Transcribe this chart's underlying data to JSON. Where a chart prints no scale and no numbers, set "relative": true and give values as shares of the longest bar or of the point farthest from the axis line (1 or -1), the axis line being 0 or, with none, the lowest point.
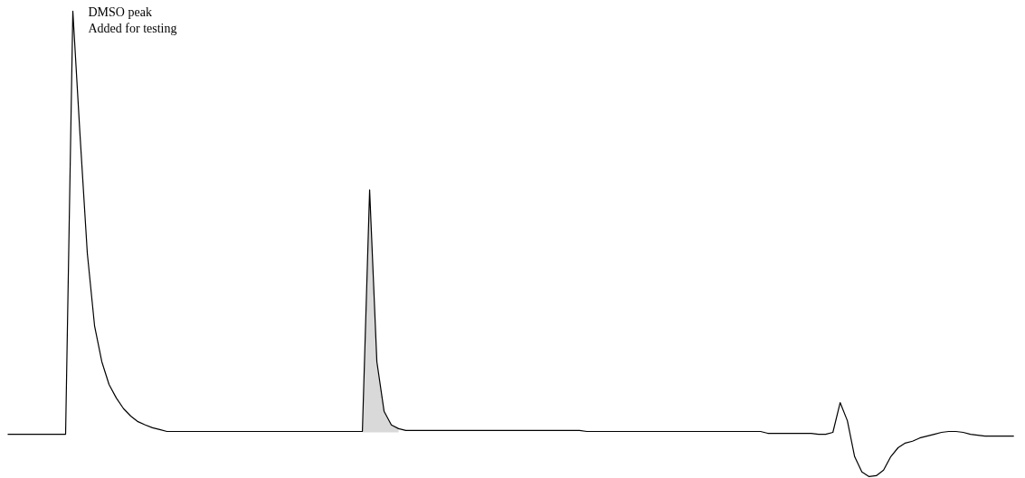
{
  "chart_data": {
    "type": "line",
    "relative": true,
    "categories": [
      null,
      null,
      null,
      null,
      null,
      null,
      null,
      null,
      null,
      null,
      null,
      null,
      null,
      null,
      null,
      null,
      null,
      null,
      null,
      null,
      null,
      null,
      null,
      null,
      null,
      null,
      null,
      null,
      null,
      null,
      null,
      null,
      null,
      null,
      null,
      null,
      null,
      null,
      null,
      null,
      null,
      null,
      null,
      null,
      null,
      null,
      null,
      null,
      null,
      null,
      null,
      null,
      null,
      null,
      null,
      null,
      null,
      null,
      null,
      null,
      null,
      null,
      null,
      null,
      null,
      null,
      null,
      null,
      null,
      null,
      null,
      null,
      null,
      null,
      null,
      null,
      null,
      null,
      null,
      null,
      null,
      null,
      null,
      null,
      null,
      null,
      null,
      null,
      null,
      null,
      null,
      null,
      null,
      null,
      null,
      null,
      null,
      null,
      null,
      null,
      null,
      null,
      null,
      null,
      null,
      null,
      null,
      null,
      null,
      null,
      null,
      null,
      null,
      null,
      null,
      null,
      null,
      null,
      null,
      null,
      null,
      null,
      null,
      null,
      null,
      null,
      null,
      null,
      null,
      null,
      null,
      null,
      null,
      null,
      null,
      null,
      null,
      null,
      null,
      null
    ],
    "series": [
      {
        "color": "#000000",
        "values": [
          0.091,
          0.091,
          0.091,
          0.091,
          0.091,
          0.091,
          0.091,
          0.091,
          0.091,
          1.0,
          0.732,
          0.48,
          0.324,
          0.247,
          0.198,
          0.169,
          0.146,
          0.13,
          0.118,
          0.111,
          0.105,
          0.101,
          0.097,
          0.097,
          0.097,
          0.097,
          0.097,
          0.097,
          0.097,
          0.097,
          0.097,
          0.097,
          0.097,
          0.097,
          0.097,
          0.097,
          0.097,
          0.097,
          0.097,
          0.097,
          0.097,
          0.097,
          0.097,
          0.097,
          0.097,
          0.097,
          0.097,
          0.097,
          0.097,
          0.097,
          0.616,
          0.247,
          0.14,
          0.111,
          0.103,
          0.099,
          0.099,
          0.099,
          0.099,
          0.099,
          0.099,
          0.099,
          0.099,
          0.099,
          0.099,
          0.099,
          0.099,
          0.099,
          0.099,
          0.099,
          0.099,
          0.099,
          0.099,
          0.099,
          0.099,
          0.099,
          0.099,
          0.099,
          0.099,
          0.099,
          0.097,
          0.097,
          0.097,
          0.097,
          0.097,
          0.097,
          0.097,
          0.097,
          0.097,
          0.097,
          0.097,
          0.097,
          0.097,
          0.097,
          0.097,
          0.097,
          0.097,
          0.097,
          0.097,
          0.097,
          0.097,
          0.097,
          0.097,
          0.097,
          0.097,
          0.093,
          0.093,
          0.093,
          0.093,
          0.093,
          0.093,
          0.093,
          0.091,
          0.091,
          0.095,
          0.159,
          0.12,
          0.043,
          0.01,
          0.0,
          0.002,
          0.014,
          0.043,
          0.062,
          0.072,
          0.076,
          0.083,
          0.087,
          0.091,
          0.095,
          0.097,
          0.097,
          0.095,
          0.091,
          0.089,
          0.087,
          0.087,
          0.087,
          0.087,
          0.087
        ],
        "lower": [
          null,
          null,
          null,
          null,
          null,
          null,
          null,
          null,
          null,
          null,
          null,
          null,
          null,
          null,
          null,
          null,
          null,
          null,
          null,
          null,
          null,
          null,
          null,
          null,
          null,
          null,
          null,
          null,
          null,
          null,
          null,
          null,
          null,
          null,
          null,
          null,
          null,
          null,
          null,
          null,
          null,
          null,
          null,
          null,
          null,
          null,
          null,
          null,
          null,
          0.095,
          0.095,
          0.095,
          0.095,
          0.095,
          0.095,
          null,
          null,
          null,
          null,
          null,
          null,
          null,
          null,
          null,
          null,
          null,
          null,
          null,
          null,
          null,
          null,
          null,
          null,
          null,
          null,
          null,
          null,
          null,
          null,
          null,
          null,
          null,
          null,
          null,
          null,
          null,
          null,
          null,
          null,
          null,
          null,
          null,
          null,
          null,
          null,
          null,
          null,
          null,
          null,
          null,
          null,
          null,
          null,
          null,
          null,
          null,
          null,
          null,
          null,
          null,
          null,
          null,
          null,
          null,
          null,
          null,
          null,
          null,
          null,
          null,
          null,
          null,
          null,
          null,
          null,
          null,
          null,
          null,
          null,
          null,
          null,
          null,
          null,
          null,
          null,
          null,
          null,
          null,
          null,
          null
        ],
        "upper": [
          null,
          null,
          null,
          null,
          null,
          null,
          null,
          null,
          null,
          null,
          null,
          null,
          null,
          null,
          null,
          null,
          null,
          null,
          null,
          null,
          null,
          null,
          null,
          null,
          null,
          null,
          null,
          null,
          null,
          null,
          null,
          null,
          null,
          null,
          null,
          null,
          null,
          null,
          null,
          null,
          null,
          null,
          null,
          null,
          null,
          null,
          null,
          null,
          null,
          0.097,
          0.616,
          0.247,
          0.14,
          0.111,
          0.103,
          null,
          null,
          null,
          null,
          null,
          null,
          null,
          null,
          null,
          null,
          null,
          null,
          null,
          null,
          null,
          null,
          null,
          null,
          null,
          null,
          null,
          null,
          null,
          null,
          null,
          null,
          null,
          null,
          null,
          null,
          null,
          null,
          null,
          null,
          null,
          null,
          null,
          null,
          null,
          null,
          null,
          null,
          null,
          null,
          null,
          null,
          null,
          null,
          null,
          null,
          null,
          null,
          null,
          null,
          null,
          null,
          null,
          null,
          null,
          null,
          null,
          null,
          null,
          null,
          null,
          null,
          null,
          null,
          null,
          null,
          null,
          null,
          null,
          null,
          null,
          null,
          null,
          null,
          null,
          null,
          null,
          null,
          null,
          null,
          null
        ]
      }
    ],
    "annotations": [
      "DMSO peak",
      "Added for testing"
    ]
  }
}
